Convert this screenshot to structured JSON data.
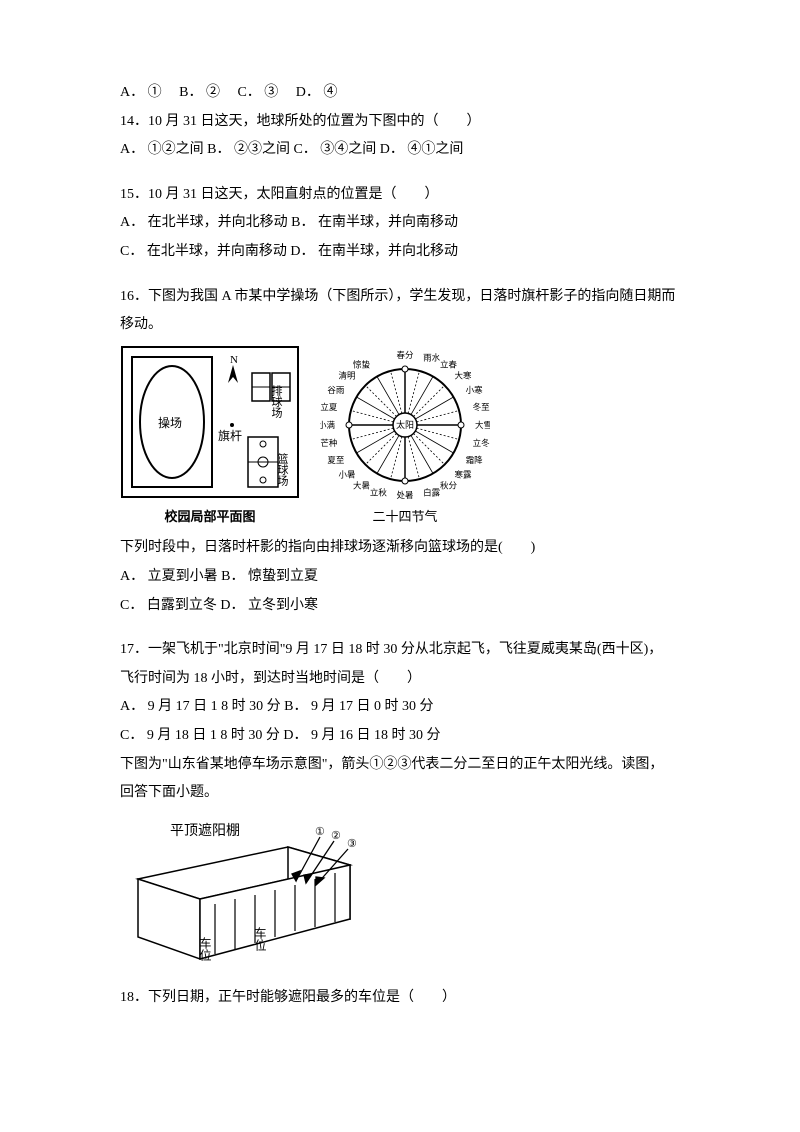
{
  "q13_options": "A．  ①　    B．  ②　     C．  ③　    D．  ④",
  "q14": "14．10 月 31 日这天，地球所处的位置为下图中的（　　）",
  "q14_options": "A．  ①②之间      B．  ②③之间    C．  ③④之间       D．  ④①之间",
  "q15": "15．10 月 31 日这天，太阳直射点的位置是（　　）",
  "q15_a": "A．  在北半球，并向北移动       B．  在南半球，并向南移动",
  "q15_b": "C．  在北半球，并向南移动       D．  在南半球，并向北移动",
  "q16_a": "16．下图为我国 A 市某中学操场（下图所示），学生发现，日落时旗杆影子的指向随日期而",
  "q16_b": "移动。",
  "campus": {
    "caption": "校园局部平面图",
    "labels": {
      "track": "操场",
      "flag": "旗杆",
      "volley": "排球场",
      "basket": "篮球场",
      "north": "N"
    },
    "colors": {
      "bg": "#ffffff",
      "line": "#000000",
      "fill_dark": "#333333"
    }
  },
  "solar_terms": {
    "caption": "二十四节气",
    "center": "太阳",
    "terms": [
      "春分",
      "雨水",
      "立春",
      "大寒",
      "小寒",
      "冬至",
      "大雪",
      "立冬",
      "霜降",
      "寒露",
      "秋分",
      "白露",
      "处暑",
      "立秋",
      "大暑",
      "小暑",
      "夏至",
      "芒种",
      "小满",
      "立夏",
      "谷雨",
      "清明",
      "惊蛰"
    ],
    "colors": {
      "line": "#000000",
      "bg": "#ffffff"
    }
  },
  "q16_q": "下列时段中，日落时杆影的指向由排球场逐渐移向篮球场的是(　　)",
  "q16_opt_a": "A．    立夏到小暑       B．  惊蛰到立夏",
  "q16_opt_b": "C．    白露到立冬       D．  立冬到小寒",
  "q17_a": "17．一架飞机于\"北京时间\"9 月 17 日 18 时 30 分从北京起飞，飞往夏威夷某岛(西十区)，",
  "q17_b": "飞行时间为 18 小时，到达时当地时间是（　　）",
  "q17_opt_a": "A．  9 月 17 日 1  8 时 30 分         B．  9 月 17 日 0 时 30 分",
  "q17_opt_b": "C．  9 月 18 日 1  8 时 30 分         D．  9 月 16 日 18 时 30 分",
  "pre18_a": "下图为\"山东省某地停车场示意图\"，箭头①②③代表二分二至日的正午太阳光线。读图，",
  "pre18_b": "回答下面小题。",
  "parking": {
    "title": "平顶遮阳棚",
    "labels": [
      "①",
      "②",
      "③"
    ],
    "spot_label": "车位",
    "colors": {
      "line": "#000000",
      "hatch": "#000000",
      "bg": "#ffffff"
    }
  },
  "q18": "18．下列日期，正午时能够遮阳最多的车位是（　　）"
}
